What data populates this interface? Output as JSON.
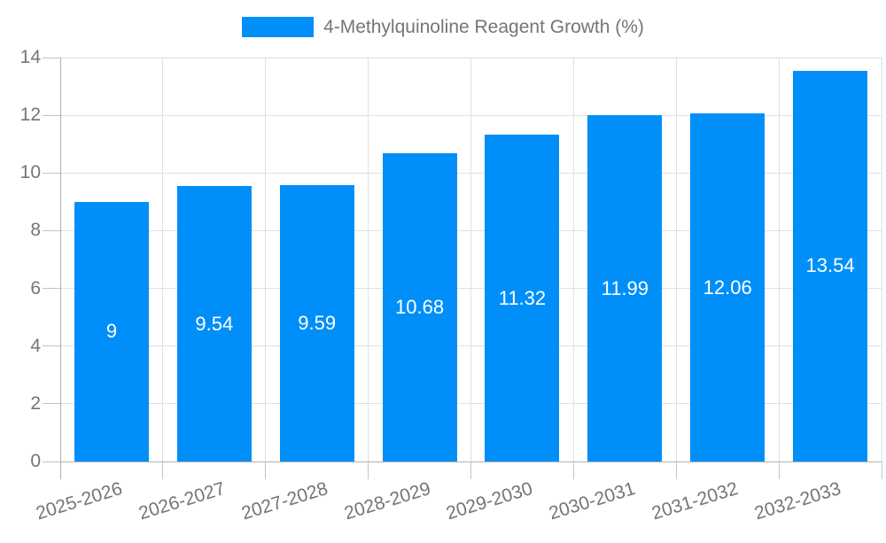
{
  "chart_data": {
    "type": "bar",
    "title": "4-Methylquinoline Reagent Growth (%)",
    "legend": {
      "label": "4-Methylquinoline Reagent Growth (%)",
      "position": "top-center"
    },
    "categories": [
      "2025-2026",
      "2026-2027",
      "2027-2028",
      "2028-2029",
      "2029-2030",
      "2030-2031",
      "2031-2032",
      "2032-2033"
    ],
    "values": [
      9,
      9.54,
      9.59,
      10.68,
      11.32,
      11.99,
      12.06,
      13.54
    ],
    "bar_labels": [
      "9",
      "9.54",
      "9.59",
      "10.68",
      "11.32",
      "11.99",
      "12.06",
      "13.54"
    ],
    "xlabel": "",
    "ylabel": "",
    "ylim": [
      0,
      14
    ],
    "yticks": [
      0,
      2,
      4,
      6,
      8,
      10,
      12,
      14
    ],
    "grid": true,
    "x_tick_rotation_deg": -17,
    "colors": {
      "bar": "#008ff8",
      "bar_label": "#ffffff",
      "axis_text": "#757575",
      "grid_line": "#e0e0e0",
      "tick_line": "#c4c4c4",
      "axis_line": "#b0b0b0",
      "background": "#ffffff"
    }
  }
}
